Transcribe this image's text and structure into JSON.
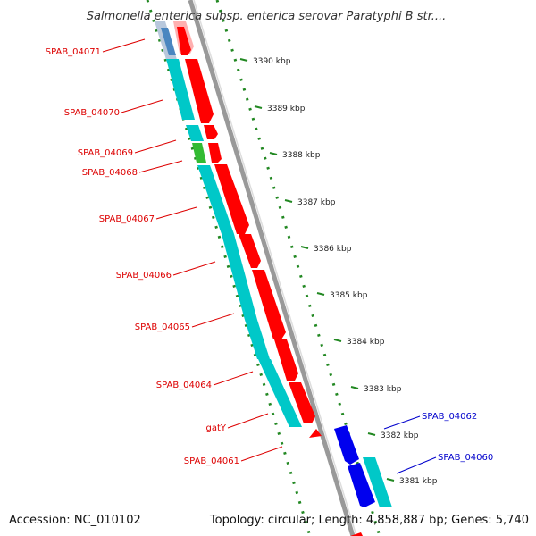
{
  "title": "Salmonella enterica subsp. enterica serovar Paratyphi B str....",
  "footer": {
    "accession": "Accession: NC_010102",
    "summary": "Topology: circular; Length: 4,858,887 bp; Genes: 5,740"
  },
  "colors": {
    "forward_cds": "#ff0000",
    "reverse_cds": "#0000ee",
    "cds_strip": "#00c8c8",
    "other_feature": "#33bb33",
    "backbone": "#888888",
    "ruler_dots": "#228822",
    "label_forward": "#dd0000",
    "label_reverse": "#0000cc"
  },
  "ruler": [
    {
      "label": "3390 kbp"
    },
    {
      "label": "3389 kbp"
    },
    {
      "label": "3388 kbp"
    },
    {
      "label": "3387 kbp"
    },
    {
      "label": "3386 kbp"
    },
    {
      "label": "3385 kbp"
    },
    {
      "label": "3384 kbp"
    },
    {
      "label": "3383 kbp"
    },
    {
      "label": "3382 kbp"
    },
    {
      "label": "3381 kbp"
    }
  ],
  "genes": [
    {
      "name": "SPAB_04071",
      "strand": "forward"
    },
    {
      "name": "SPAB_04070",
      "strand": "forward"
    },
    {
      "name": "SPAB_04069",
      "strand": "forward"
    },
    {
      "name": "SPAB_04068",
      "strand": "forward"
    },
    {
      "name": "SPAB_04067",
      "strand": "forward"
    },
    {
      "name": "SPAB_04066",
      "strand": "forward"
    },
    {
      "name": "SPAB_04065",
      "strand": "forward"
    },
    {
      "name": "SPAB_04064",
      "strand": "forward"
    },
    {
      "name": "gatY",
      "strand": "forward"
    },
    {
      "name": "SPAB_04061",
      "strand": "forward"
    },
    {
      "name": "SPAB_04062",
      "strand": "reverse"
    },
    {
      "name": "SPAB_04060",
      "strand": "reverse"
    }
  ]
}
